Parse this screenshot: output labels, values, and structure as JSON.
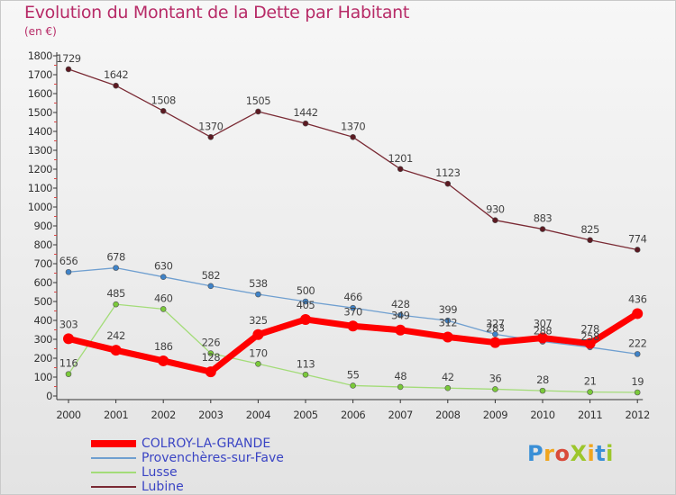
{
  "title": "Evolution du Montant de la Dette par Habitant",
  "unit_label": "(en €)",
  "logo": {
    "text": "ProXiti",
    "letters": [
      {
        "ch": "P",
        "color": "#3a8fd6"
      },
      {
        "ch": "r",
        "color": "#f0a51e"
      },
      {
        "ch": "o",
        "color": "#d94a3a"
      },
      {
        "ch": "X",
        "color": "#9cc62b"
      },
      {
        "ch": "i",
        "color": "#f0a51e"
      },
      {
        "ch": "t",
        "color": "#3a8fd6"
      },
      {
        "ch": "i",
        "color": "#9cc62b"
      }
    ]
  },
  "chart_data": {
    "type": "line",
    "title": "Evolution du Montant de la Dette par Habitant",
    "ylabel": "(en €)",
    "x": [
      "2000",
      "2001",
      "2002",
      "2003",
      "2004",
      "2005",
      "2006",
      "2007",
      "2008",
      "2009",
      "2010",
      "2011",
      "2012"
    ],
    "ylim": [
      0,
      1800
    ],
    "yticks": [
      0,
      100,
      200,
      300,
      400,
      500,
      600,
      700,
      800,
      900,
      1000,
      1100,
      1200,
      1300,
      1400,
      1500,
      1600,
      1700,
      1800
    ],
    "grid": false,
    "legend_position": "bottom-left",
    "series": [
      {
        "name": "COLROY-LA-GRANDE",
        "color": "#ff0000",
        "marker": "#ff0000",
        "emphasis": true,
        "values": [
          303,
          242,
          186,
          128,
          325,
          405,
          370,
          349,
          312,
          283,
          307,
          278,
          436
        ]
      },
      {
        "name": "Provenchères-sur-Fave",
        "color": "#6f9fd0",
        "marker": "#3f83c8",
        "values": [
          656,
          678,
          630,
          582,
          538,
          500,
          466,
          428,
          399,
          327,
          288,
          258,
          222
        ]
      },
      {
        "name": "Lusse",
        "color": "#a3dc78",
        "marker": "#7ac93a",
        "values": [
          116,
          485,
          460,
          226,
          170,
          113,
          55,
          48,
          42,
          36,
          28,
          21,
          19
        ]
      },
      {
        "name": "Lubine",
        "color": "#7a2a34",
        "marker": "#5c1a22",
        "values": [
          1729,
          1642,
          1508,
          1370,
          1505,
          1442,
          1370,
          1201,
          1123,
          930,
          883,
          825,
          774
        ]
      }
    ]
  }
}
